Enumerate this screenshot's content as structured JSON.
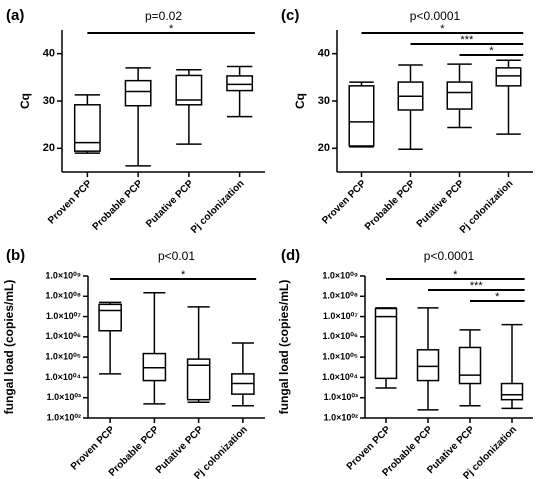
{
  "chart_data": [
    {
      "type": "box",
      "panel_label": "(a)",
      "title": "p=0.02",
      "y_label": "Cq",
      "categories": [
        "Proven PCP",
        "Probable PCP",
        "Putative PCP",
        "Pj colonization"
      ],
      "boxes": [
        {
          "min": 19,
          "q1": 19.4,
          "median": 21.2,
          "q3": 29.2,
          "max": 31.3
        },
        {
          "min": 16.3,
          "q1": 29,
          "median": 32,
          "q3": 34.3,
          "max": 37
        },
        {
          "min": 20.9,
          "q1": 29.2,
          "median": 30.2,
          "q3": 35.4,
          "max": 36.6
        },
        {
          "min": 26.7,
          "q1": 32.2,
          "median": 33.5,
          "q3": 35.3,
          "max": 37.3
        }
      ],
      "ylim": [
        15,
        45
      ],
      "yticks": [
        20,
        30,
        40
      ],
      "log_scale": false,
      "significance": [
        {
          "from": 0,
          "to": 3,
          "label": "*"
        }
      ]
    },
    {
      "type": "box",
      "panel_label": "(c)",
      "title": "p<0.0001",
      "y_label": "Cq",
      "categories": [
        "Proven PCP",
        "Probable PCP",
        "Putative PCP",
        "Pj colonization"
      ],
      "boxes": [
        {
          "min": 20.3,
          "q1": 20.5,
          "median": 25.6,
          "q3": 33.2,
          "max": 34
        },
        {
          "min": 19.8,
          "q1": 28.1,
          "median": 31,
          "q3": 34,
          "max": 37.6
        },
        {
          "min": 24.4,
          "q1": 28.3,
          "median": 31.8,
          "q3": 34,
          "max": 37.8
        },
        {
          "min": 23,
          "q1": 33.2,
          "median": 35.3,
          "q3": 37,
          "max": 38.6
        }
      ],
      "ylim": [
        15,
        45
      ],
      "yticks": [
        20,
        30,
        40
      ],
      "log_scale": false,
      "significance": [
        {
          "from": 0,
          "to": 3,
          "label": "*"
        },
        {
          "from": 1,
          "to": 3,
          "label": "***"
        },
        {
          "from": 2,
          "to": 3,
          "label": "*"
        }
      ]
    },
    {
      "type": "box",
      "panel_label": "(b)",
      "title": "p<0.01",
      "y_label": "fungal load (copies/mL)",
      "categories": [
        "Proven PCP",
        "Probable PCP",
        "Putative PCP",
        "Pj colonization"
      ],
      "boxes": [
        {
          "min": 15000,
          "q1": 2000000,
          "median": 20000000,
          "q3": 40000000,
          "max": 50000000
        },
        {
          "min": 500,
          "q1": 7000,
          "median": 30000,
          "q3": 150000,
          "max": 150000000
        },
        {
          "min": 600,
          "q1": 800,
          "median": 40000,
          "q3": 80000,
          "max": 30000000
        },
        {
          "min": 400,
          "q1": 1500,
          "median": 5000,
          "q3": 15000,
          "max": 500000
        }
      ],
      "ylim": [
        100,
        1000000000
      ],
      "log_scale": true,
      "yticks": [
        {
          "value": 100,
          "label": "1.0×10⁰²"
        },
        {
          "value": 1000,
          "label": "1.0×10⁰³"
        },
        {
          "value": 10000,
          "label": "1.0×10⁰⁴"
        },
        {
          "value": 100000,
          "label": "1.0×10⁰⁵"
        },
        {
          "value": 1000000,
          "label": "1.0×10⁰⁶"
        },
        {
          "value": 10000000,
          "label": "1.0×10⁰⁷"
        },
        {
          "value": 100000000,
          "label": "1.0×10⁰⁸"
        },
        {
          "value": 1000000000,
          "label": "1.0×10⁰⁹"
        }
      ],
      "significance": [
        {
          "from": 0,
          "to": 3,
          "label": "*"
        }
      ]
    },
    {
      "type": "box",
      "panel_label": "(d)",
      "title": "p<0.0001",
      "y_label": "fungal load (copies/mL)",
      "categories": [
        "Proven PCP",
        "Probable PCP",
        "Putative PCP",
        "Pj colonization"
      ],
      "boxes": [
        {
          "min": 3000,
          "q1": 9000,
          "median": 10000000,
          "q3": 25000000,
          "max": 27000000
        },
        {
          "min": 250,
          "q1": 7000,
          "median": 35000,
          "q3": 230000,
          "max": 27000000
        },
        {
          "min": 400,
          "q1": 5000,
          "median": 13000,
          "q3": 300000,
          "max": 2200000
        },
        {
          "min": 300,
          "q1": 800,
          "median": 1400,
          "q3": 5000,
          "max": 4000000
        }
      ],
      "ylim": [
        100,
        1000000000
      ],
      "log_scale": true,
      "yticks": [
        {
          "value": 100,
          "label": "1.0×10⁰²"
        },
        {
          "value": 1000,
          "label": "1.0×10⁰³"
        },
        {
          "value": 10000,
          "label": "1.0×10⁰⁴"
        },
        {
          "value": 100000,
          "label": "1.0×10⁰⁵"
        },
        {
          "value": 1000000,
          "label": "1.0×10⁰⁶"
        },
        {
          "value": 10000000,
          "label": "1.0×10⁰⁷"
        },
        {
          "value": 100000000,
          "label": "1.0×10⁰⁸"
        },
        {
          "value": 1000000000,
          "label": "1.0×10⁰⁹"
        }
      ],
      "significance": [
        {
          "from": 0,
          "to": 3,
          "label": "*"
        },
        {
          "from": 1,
          "to": 3,
          "label": "***"
        },
        {
          "from": 2,
          "to": 3,
          "label": "*"
        }
      ]
    }
  ]
}
